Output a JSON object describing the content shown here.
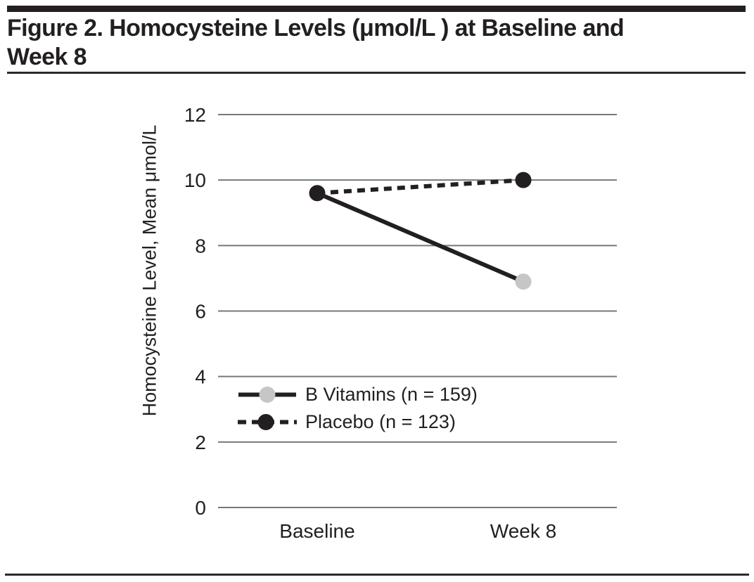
{
  "header": {
    "title_line1": "Figure 2. Homocysteine Levels (μmol/L ) at Baseline and",
    "title_line2": "Week 8"
  },
  "colors": {
    "text": "#231f20",
    "grid": "#77787b",
    "rule": "#231f20",
    "background": "#ffffff"
  },
  "chart_data": {
    "type": "line",
    "title": "Figure 2. Homocysteine Levels (μmol/L ) at Baseline and Week 8",
    "categories": [
      "Baseline",
      "Week 8"
    ],
    "series": [
      {
        "name": "B Vitamins (n = 159)",
        "values": [
          9.6,
          6.9
        ],
        "line_style": "solid",
        "line_color": "#231f20",
        "marker": "circle",
        "marker_color": "#c6c6c6"
      },
      {
        "name": "Placebo (n = 123)",
        "values": [
          9.6,
          10.0
        ],
        "line_style": "dashed",
        "line_color": "#231f20",
        "marker": "circle",
        "marker_color": "#231f20"
      }
    ],
    "xlabel": "",
    "ylabel": "Homocysteine Level, Mean μmol/L",
    "ylim": [
      0,
      12
    ],
    "yticks": [
      0,
      2,
      4,
      6,
      8,
      10,
      12
    ],
    "grid": "horizontal",
    "gridline_color": "#77787b",
    "legend_position": "inside-lower-left"
  }
}
